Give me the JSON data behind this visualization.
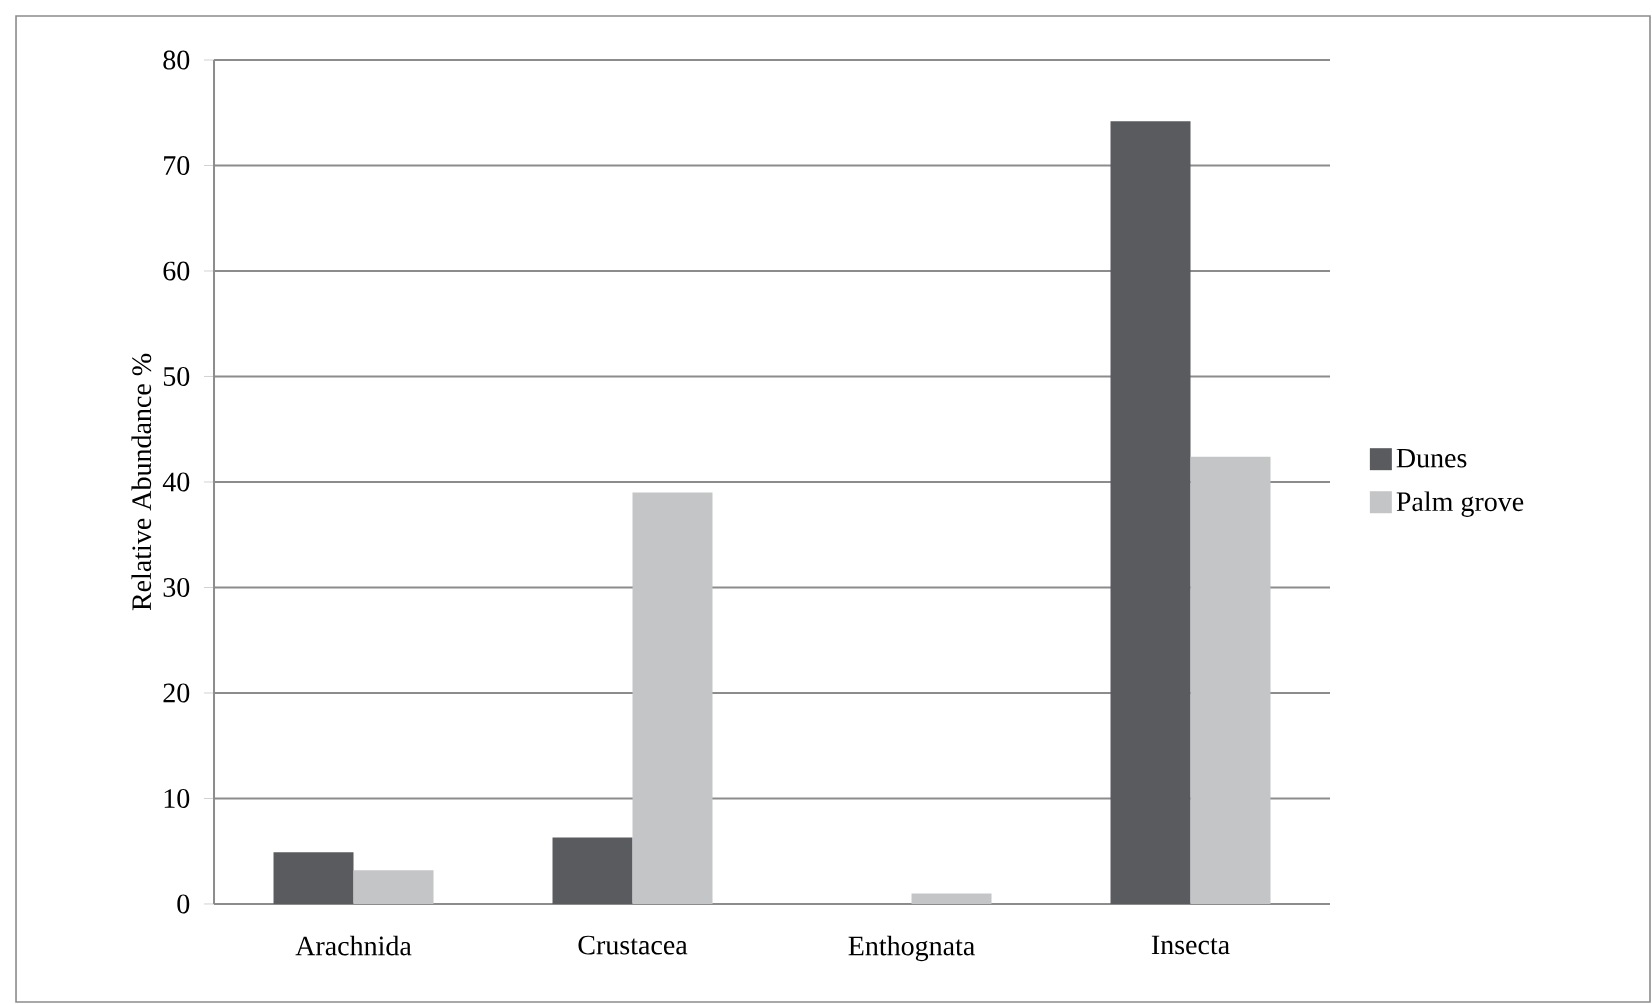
{
  "chart_data": {
    "type": "bar",
    "ylabel": "Relative Abundance %",
    "categories": [
      "Arachnida",
      "Crustacea",
      "Enthognata",
      "Insecta"
    ],
    "series": [
      {
        "name": "Dunes",
        "color": "#5a5b5f",
        "values": [
          4.9,
          6.3,
          0,
          74.2
        ]
      },
      {
        "name": "Palm grove",
        "color": "#c4c5c7",
        "values": [
          3.2,
          39.0,
          1.0,
          42.4
        ]
      }
    ],
    "ylim": [
      0,
      80
    ],
    "yticks": [
      0,
      10,
      20,
      30,
      40,
      50,
      60,
      70,
      80
    ],
    "grid": "y",
    "legend": "right"
  }
}
